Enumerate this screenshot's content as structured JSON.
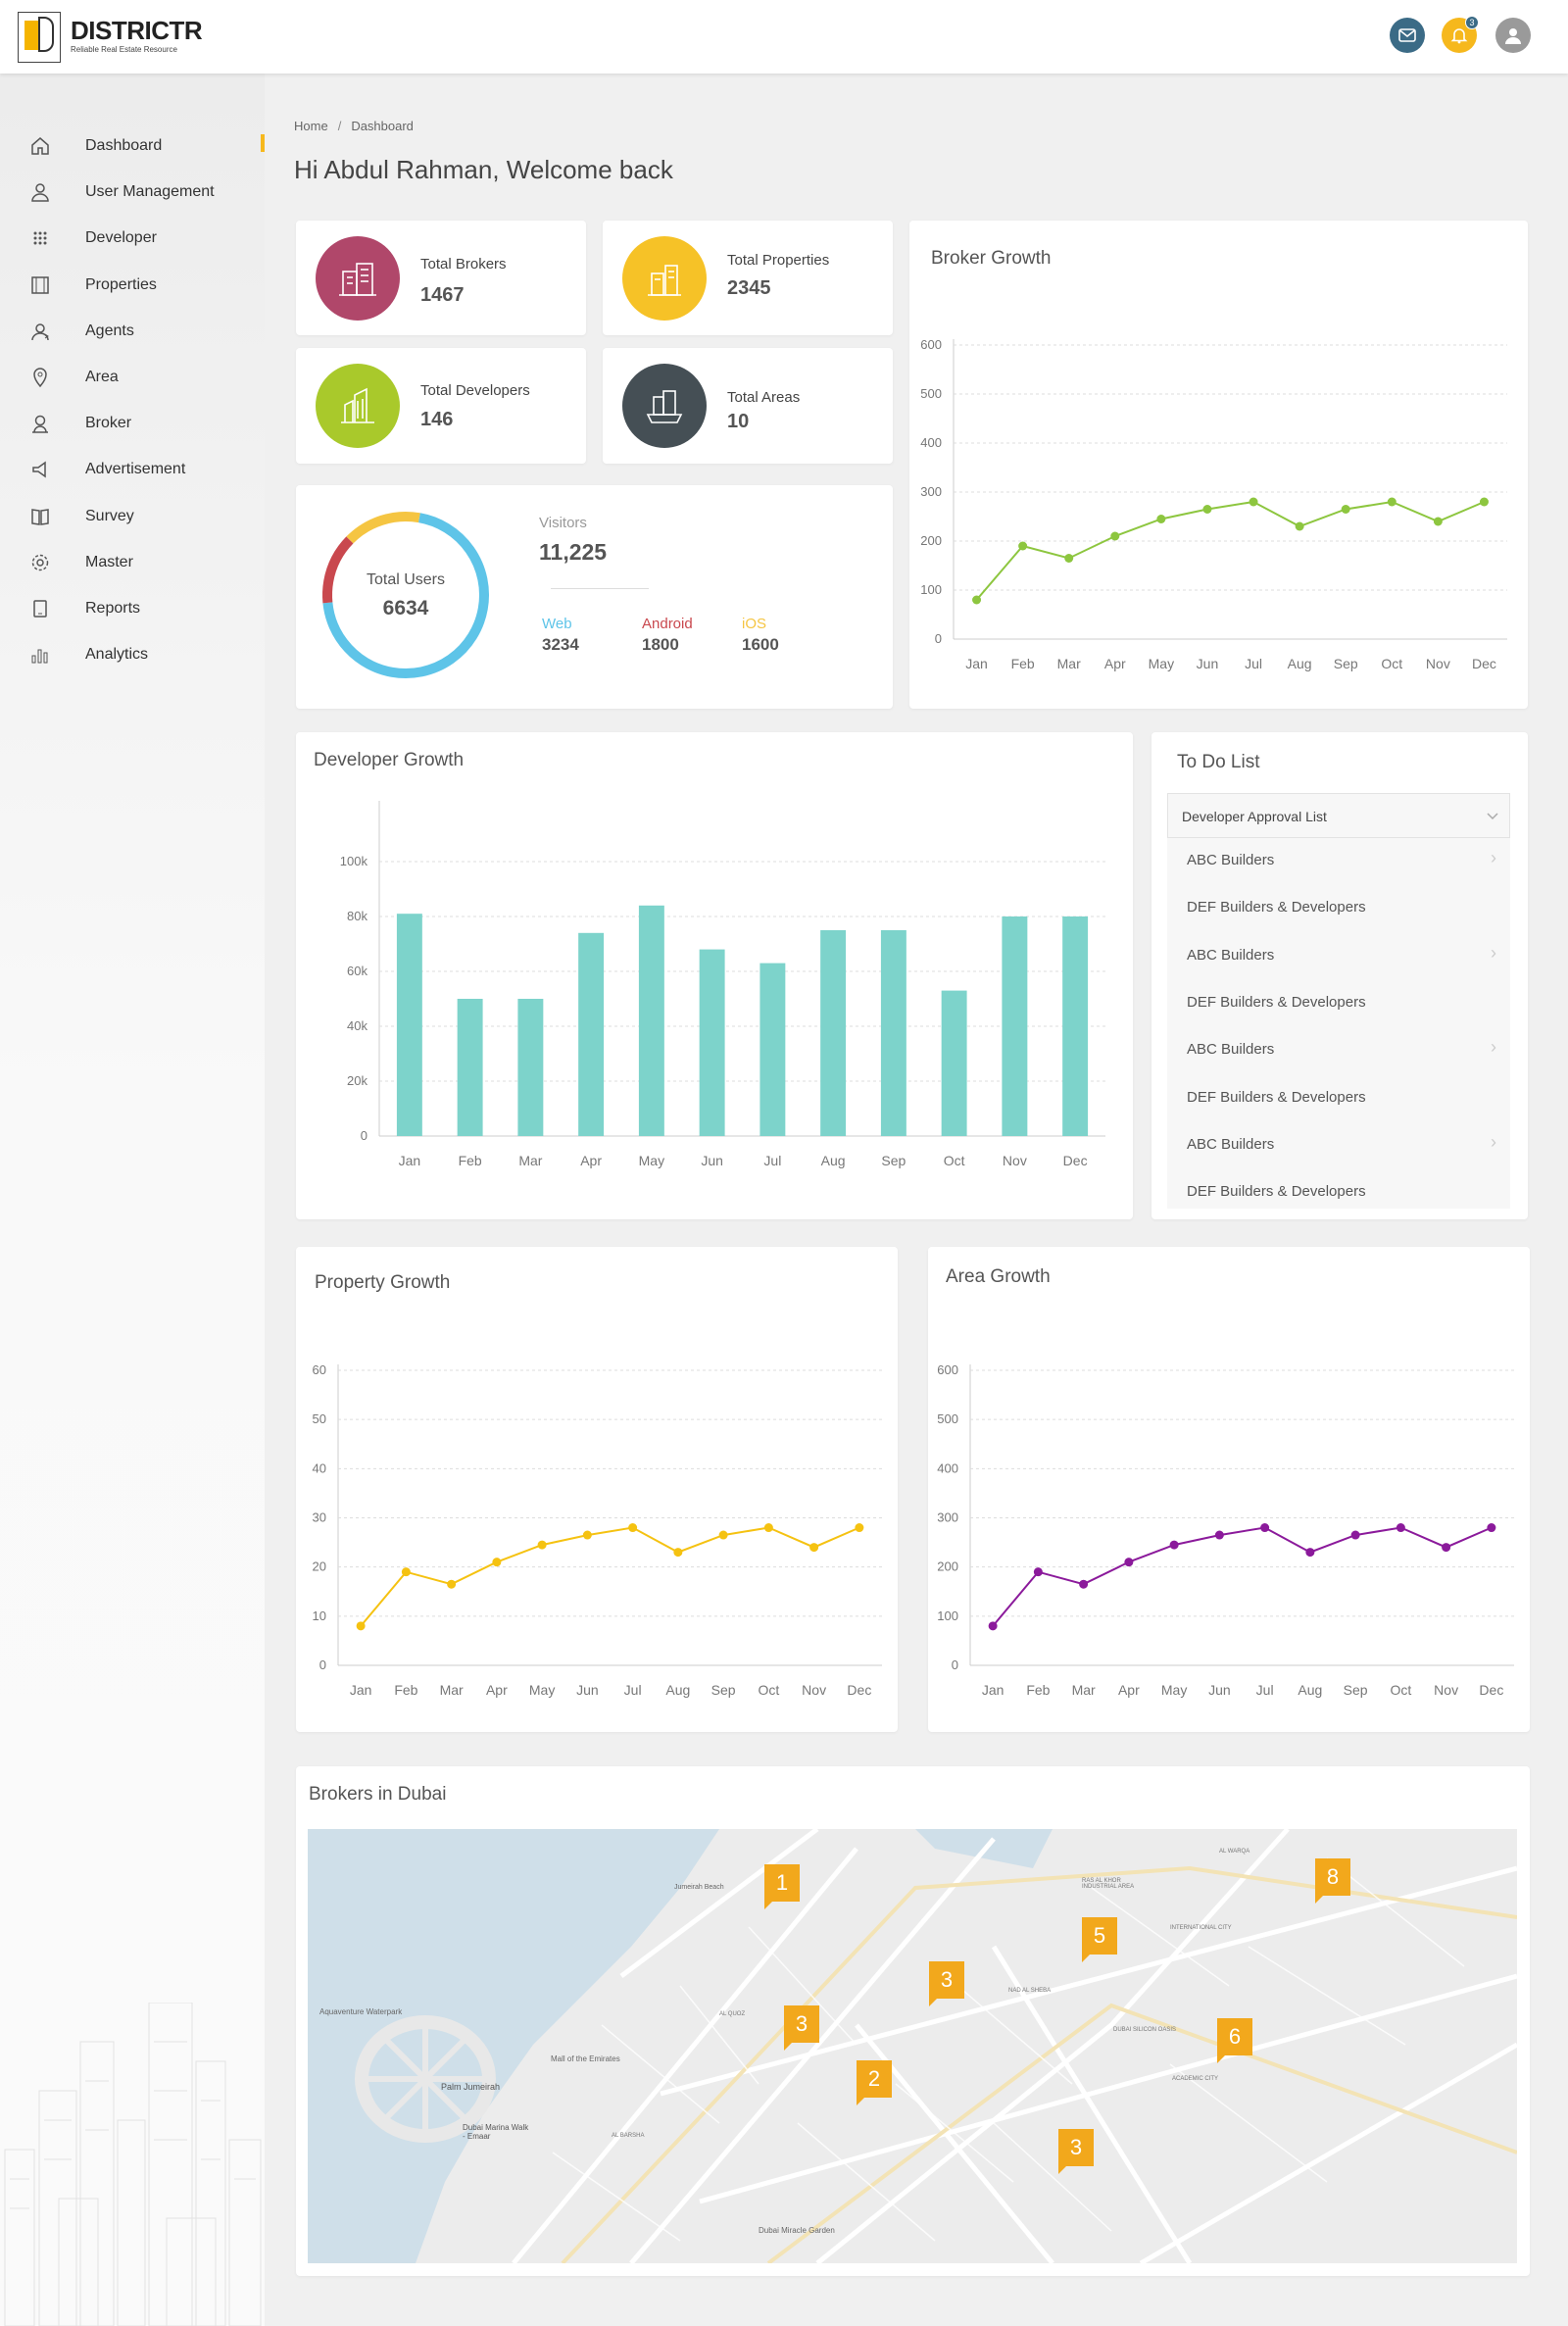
{
  "header": {
    "brand": "DISTRICTR",
    "tagline": "Reliable Real Estate Resource",
    "notification_count": "3"
  },
  "sidebar": {
    "items": [
      {
        "label": "Dashboard",
        "icon": "home-icon"
      },
      {
        "label": "User Management",
        "icon": "user-icon"
      },
      {
        "label": "Developer",
        "icon": "grid-dots-icon"
      },
      {
        "label": "Properties",
        "icon": "film-icon"
      },
      {
        "label": "Agents",
        "icon": "agent-icon"
      },
      {
        "label": "Area",
        "icon": "location-pin-icon"
      },
      {
        "label": "Broker",
        "icon": "broker-icon"
      },
      {
        "label": "Advertisement",
        "icon": "megaphone-icon"
      },
      {
        "label": "Survey",
        "icon": "book-icon"
      },
      {
        "label": "Master",
        "icon": "gear-icon"
      },
      {
        "label": "Reports",
        "icon": "tablet-icon"
      },
      {
        "label": "Analytics",
        "icon": "bar-chart-icon"
      }
    ]
  },
  "breadcrumb": {
    "home": "Home",
    "sep": "/",
    "current": "Dashboard"
  },
  "welcome": "Hi Abdul Rahman, Welcome back",
  "stats": {
    "brokers": {
      "label": "Total Brokers",
      "value": "1467",
      "color": "#b0476a"
    },
    "properties": {
      "label": "Total Properties",
      "value": "2345",
      "color": "#f6c227"
    },
    "developers": {
      "label": "Total Developers",
      "value": "146",
      "color": "#a9c92b"
    },
    "areas": {
      "label": "Total Areas",
      "value": "10",
      "color": "#454f55"
    }
  },
  "users": {
    "donut_label": "Total Users",
    "donut_value": "6634",
    "visitors_label": "Visitors",
    "visitors_value": "11,225",
    "web_label": "Web",
    "web_value": "3234",
    "android_label": "Android",
    "android_value": "1800",
    "ios_label": "iOS",
    "ios_value": "1600",
    "colors": {
      "web": "#5ec4e8",
      "android": "#c9484e",
      "ios": "#f5c542"
    }
  },
  "broker_growth": {
    "title": "Broker Growth"
  },
  "developer_growth": {
    "title": "Developer Growth"
  },
  "property_growth": {
    "title": "Property Growth"
  },
  "area_growth": {
    "title": "Area Growth"
  },
  "todo": {
    "title": "To Do List",
    "dropdown": "Developer Approval List",
    "items": [
      {
        "label": "ABC Builders",
        "arrow": true
      },
      {
        "label": "DEF Builders & Developers",
        "arrow": false
      },
      {
        "label": "ABC Builders",
        "arrow": true
      },
      {
        "label": "DEF Builders & Developers",
        "arrow": false
      },
      {
        "label": "ABC Builders",
        "arrow": true
      },
      {
        "label": "DEF Builders & Developers",
        "arrow": false
      },
      {
        "label": "ABC Builders",
        "arrow": true
      },
      {
        "label": "DEF Builders & Developers",
        "arrow": false
      }
    ]
  },
  "map": {
    "title": "Brokers in Dubai",
    "pins": [
      "1",
      "8",
      "5",
      "3",
      "3",
      "6",
      "2",
      "3"
    ],
    "labels": [
      "Jumeirah Beach",
      "Palm Jumeirah",
      "Mall of the Emirates",
      "Dubai Marina Walk - Emaar",
      "Aquaventure Waterpark",
      "Dubai Miracle Garden",
      "DUBAI SILICON OASIS",
      "ACADEMIC CITY",
      "INTERNATIONAL CITY",
      "AL QUOZ",
      "AL BARSHA",
      "AL WARQA",
      "RAS AL KHOR INDUSTRIAL AREA",
      "NAD AL SHEBA"
    ]
  },
  "chart_data": [
    {
      "type": "line",
      "title": "Broker Growth",
      "categories": [
        "Jan",
        "Feb",
        "Mar",
        "Apr",
        "May",
        "Jun",
        "Jul",
        "Aug",
        "Sep",
        "Oct",
        "Nov",
        "Dec"
      ],
      "values": [
        80,
        190,
        165,
        210,
        245,
        265,
        280,
        230,
        265,
        280,
        240,
        280
      ],
      "ylim": [
        0,
        600
      ],
      "yticks": [
        "0",
        "100",
        "200",
        "300",
        "400",
        "500",
        "600"
      ],
      "color": "#8dc63f"
    },
    {
      "type": "bar",
      "title": "Developer Growth",
      "categories": [
        "Jan",
        "Feb",
        "Mar",
        "Apr",
        "May",
        "Jun",
        "Jul",
        "Aug",
        "Sep",
        "Oct",
        "Nov",
        "Dec"
      ],
      "values": [
        81000,
        50000,
        50000,
        74000,
        84000,
        68000,
        63000,
        75000,
        75000,
        53000,
        80000,
        80000
      ],
      "ylim": [
        0,
        120000
      ],
      "yticks": [
        "0",
        "20k",
        "40k",
        "60k",
        "80k",
        "100k"
      ],
      "color": "#7dd3cb"
    },
    {
      "type": "line",
      "title": "Property Growth",
      "categories": [
        "Jan",
        "Feb",
        "Mar",
        "Apr",
        "May",
        "Jun",
        "Jul",
        "Aug",
        "Sep",
        "Oct",
        "Nov",
        "Dec"
      ],
      "values": [
        8,
        19,
        16.5,
        21,
        24.5,
        26.5,
        28,
        23,
        26.5,
        28,
        24,
        28
      ],
      "ylim": [
        0,
        60
      ],
      "yticks": [
        "0",
        "10",
        "20",
        "30",
        "40",
        "50",
        "60"
      ],
      "color": "#f5c211"
    },
    {
      "type": "line",
      "title": "Area Growth",
      "categories": [
        "Jan",
        "Feb",
        "Mar",
        "Apr",
        "May",
        "Jun",
        "Jul",
        "Aug",
        "Sep",
        "Oct",
        "Nov",
        "Dec"
      ],
      "values": [
        80,
        190,
        165,
        210,
        245,
        265,
        280,
        230,
        265,
        280,
        240,
        280
      ],
      "ylim": [
        0,
        600
      ],
      "yticks": [
        "0",
        "100",
        "200",
        "300",
        "400",
        "500",
        "600"
      ],
      "color": "#8b1a9b"
    }
  ]
}
